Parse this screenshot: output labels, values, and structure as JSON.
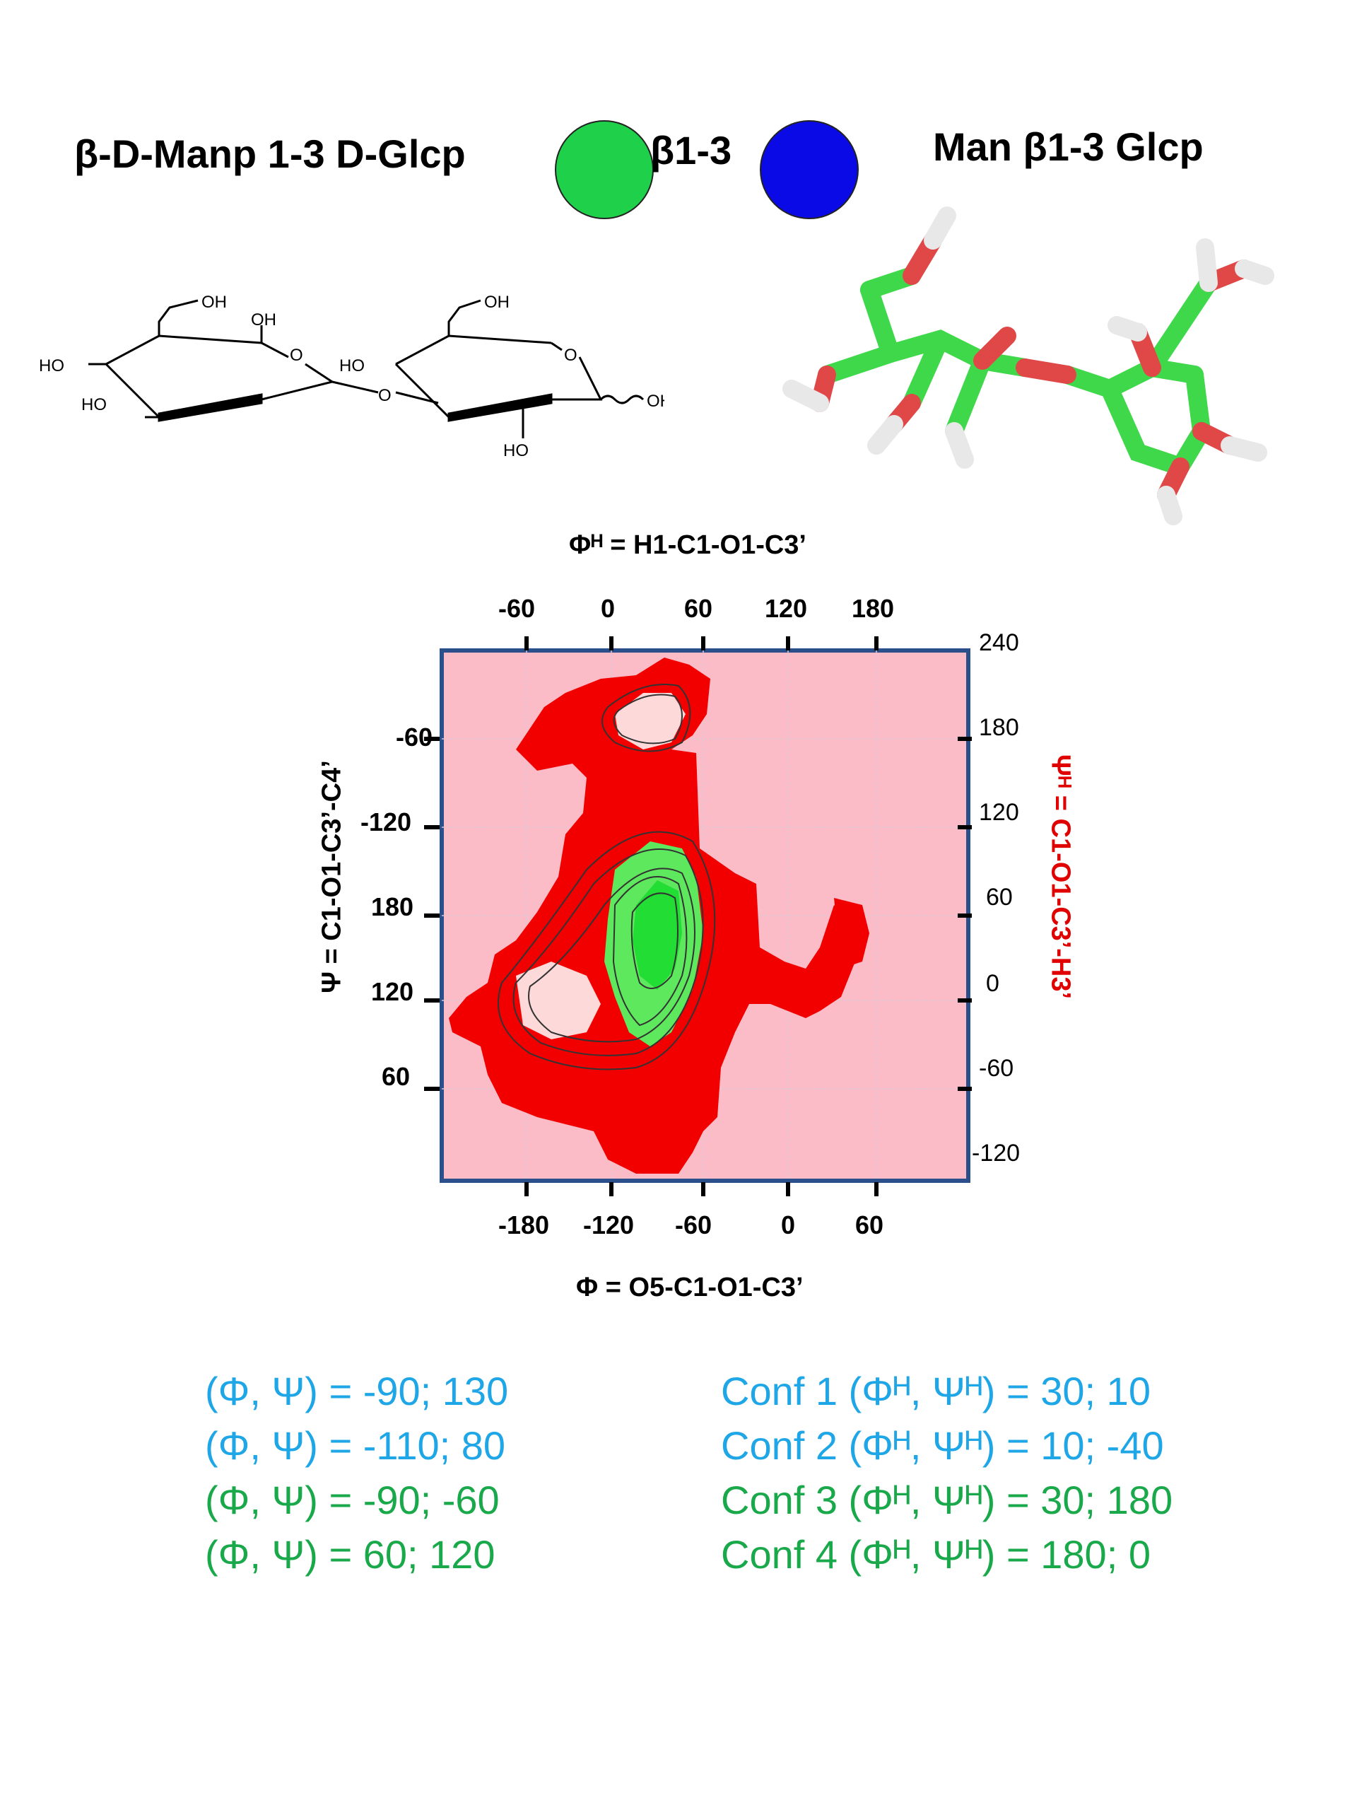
{
  "header": {
    "left_title": "β-D-Manp 1-3 D-Glcp",
    "linkage_label": "β1-3",
    "right_title": "Man β1-3 Glcp",
    "colors": {
      "man_circle": "#1fd14a",
      "glc_circle": "#0a0ae6"
    }
  },
  "structure_2d": {
    "labels": {
      "oh_top_left": "OH",
      "oh_ring_left": "OH",
      "o_ring_left": "O",
      "ho_left": "HO",
      "ho_bottom_left": "HO",
      "ho_mid": "HO",
      "o_link": "O",
      "oh_top_right": "OH",
      "o_ring_right": "O",
      "oh_right": "OH",
      "ho_bottom_right": "HO"
    }
  },
  "structure_3d": {
    "icon": "stick-model-icon",
    "colors": {
      "carbon": "#3fd84a",
      "oxygen": "#e04848",
      "hydrogen": "#e8e8e8"
    }
  },
  "axes": {
    "top_title": "Φᴴ = H1-C1-O1-C3’",
    "bottom_title": "Φ = O5-C1-O1-C3’",
    "left_title": "Ψ = C1-O1-C3’-C4’",
    "right_title": "Ψᴴ = C1-O1-C3’-H3’",
    "top_ticks": [
      "-60",
      "0",
      "60",
      "120",
      "180"
    ],
    "bottom_ticks": [
      "-180",
      "-120",
      "-60",
      "0",
      "60"
    ],
    "left_ticks": [
      "-60",
      "-120",
      "180",
      "120",
      "60"
    ],
    "right_ticks": [
      "240",
      "180",
      "120",
      "60",
      "0",
      "-60",
      "-120"
    ]
  },
  "map_colors": {
    "background": "#fbbcc8",
    "region": "#f20000",
    "minimum": "#22dd33",
    "frame": "#2a4f8a"
  },
  "results": {
    "left": [
      {
        "text": "(Φ, Ψ) = -90; 130",
        "color": "#1ea6e6"
      },
      {
        "text": "(Φ, Ψ) = -110; 80",
        "color": "#1ea6e6"
      },
      {
        "text": " (Φ, Ψ) = -90; -60",
        "color": "#19a84a"
      },
      {
        "text": "(Φ, Ψ) =  60; 120",
        "color": "#19a84a"
      }
    ],
    "right": [
      {
        "text": "Conf 1 (Φᴴ, Ψᴴ) = 30; 10",
        "color": "#1ea6e6"
      },
      {
        "text": "Conf 2 (Φᴴ, Ψᴴ) = 10; -40",
        "color": "#1ea6e6"
      },
      {
        "text": "Conf 3 (Φᴴ, Ψᴴ) = 30; 180",
        "color": "#19a84a"
      },
      {
        "text": "Conf 4 (Φᴴ, Ψᴴ) = 180; 0",
        "color": "#19a84a"
      }
    ]
  }
}
